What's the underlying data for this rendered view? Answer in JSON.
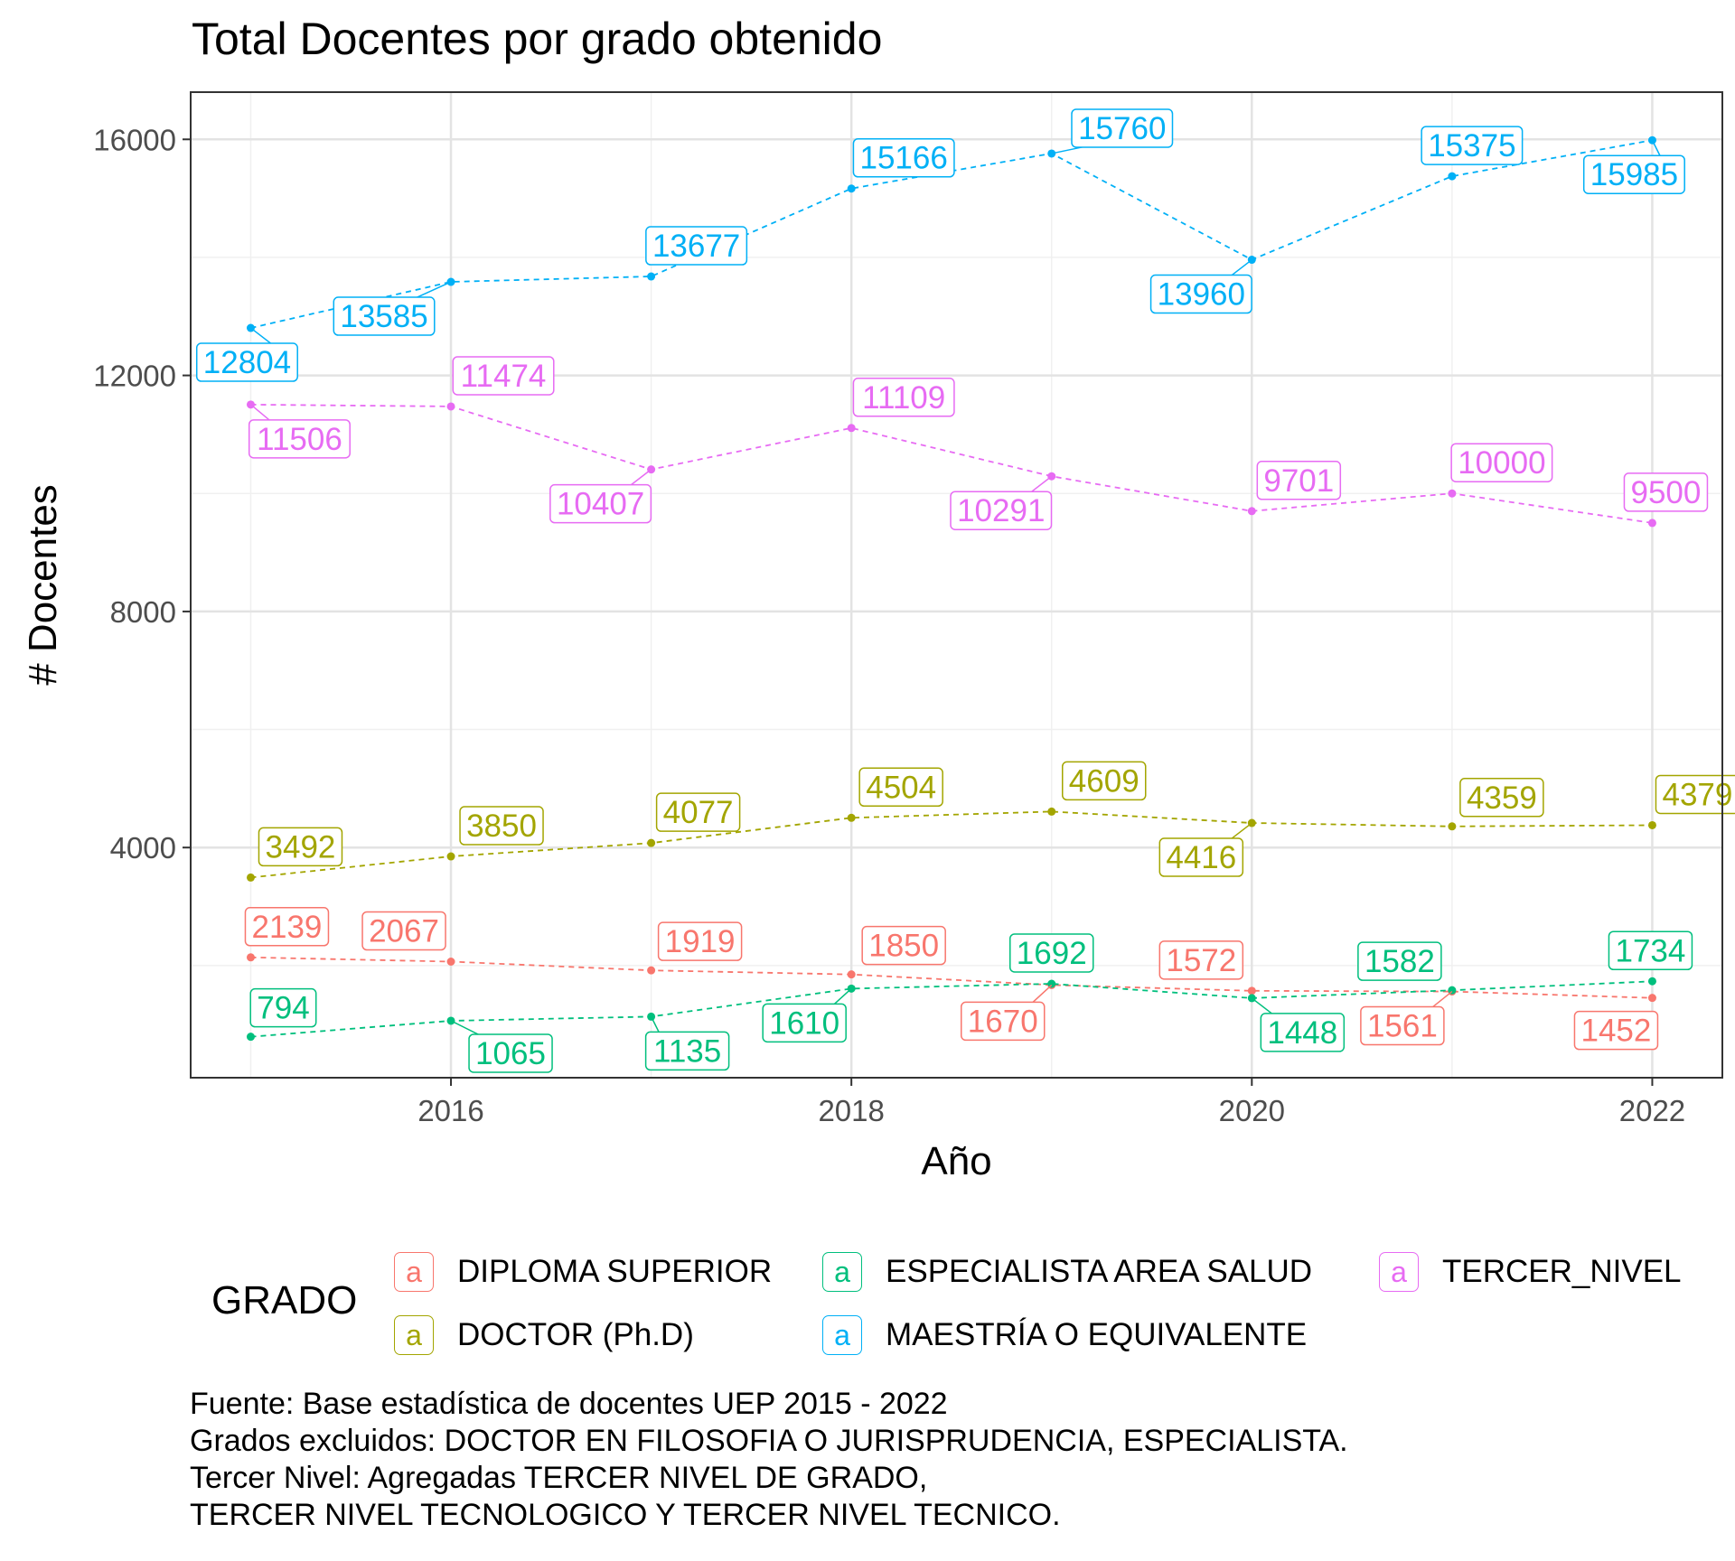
{
  "chart_data": {
    "type": "line",
    "title": "Total Docentes por grado obtenido",
    "xlabel": "Año",
    "ylabel": "# Docentes",
    "x": [
      2015,
      2016,
      2017,
      2018,
      2019,
      2020,
      2021,
      2022
    ],
    "xlim": [
      2014.7,
      2022.35
    ],
    "ylim": [
      100,
      16800
    ],
    "x_ticks": [
      "2016",
      "2018",
      "2020",
      "2022"
    ],
    "y_ticks": [
      "4000",
      "8000",
      "12000",
      "16000"
    ],
    "grid": true,
    "legend_position": "bottom",
    "legend_title": "GRADO",
    "series": [
      {
        "name": "DIPLOMA SUPERIOR",
        "color": "#F8766D",
        "values": [
          2139,
          2067,
          1919,
          1850,
          1670,
          1572,
          1561,
          1452
        ]
      },
      {
        "name": "DOCTOR (Ph.D)",
        "color": "#A3A500",
        "values": [
          3492,
          3850,
          4077,
          4504,
          4609,
          4416,
          4359,
          4379
        ]
      },
      {
        "name": "ESPECIALISTA AREA SALUD",
        "color": "#00BF7D",
        "values": [
          794,
          1065,
          1135,
          1610,
          1692,
          1448,
          1582,
          1734
        ]
      },
      {
        "name": "MAESTRÍA O EQUIVALENTE",
        "color": "#00B0F6",
        "values": [
          12804,
          13585,
          13677,
          15166,
          15760,
          13960,
          15375,
          15985
        ]
      },
      {
        "name": "TERCER_NIVEL",
        "color": "#E76BF3",
        "values": [
          11506,
          11474,
          10407,
          11109,
          10291,
          9701,
          10000,
          9500
        ]
      }
    ],
    "legend_key_glyph": "a",
    "caption": [
      "Fuente: Base estadística de docentes UEP 2015 - 2022",
      "Grados excluidos: DOCTOR EN FILOSOFIA O JURISPRUDENCIA, ESPECIALISTA.",
      "Tercer Nivel: Agregadas TERCER NIVEL DE GRADO,",
      "TERCER NIVEL TECNOLOGICO Y TERCER NIVEL TECNICO."
    ]
  }
}
